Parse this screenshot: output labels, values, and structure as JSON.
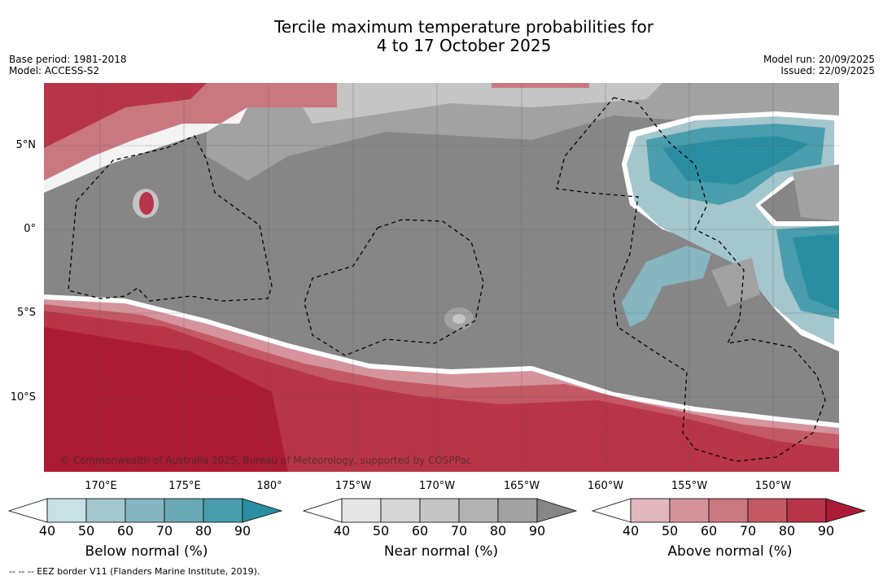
{
  "title": {
    "line1": "Tercile maximum temperature probabilities for",
    "line2": "4 to 17 October 2025"
  },
  "meta": {
    "base_period": "Base period: 1981-2018",
    "model": "Model: ACCESS-S2",
    "model_run": "Model run: 20/09/2025",
    "issued": "Issued: 22/09/2025"
  },
  "map": {
    "lat_labels": [
      "5°N",
      "0°",
      "5°S",
      "10°S"
    ],
    "lon_labels": [
      "170°E",
      "175°E",
      "180°",
      "175°W",
      "170°W",
      "165°W",
      "160°W",
      "155°W",
      "150°W"
    ],
    "copyright": "© Commonwealth of Australia 2025, Bureau of Meteorology, supported by COSPPac"
  },
  "colorbars": {
    "below": {
      "title": "Below normal (%)",
      "ticks": [
        "40",
        "50",
        "60",
        "70",
        "80",
        "90"
      ],
      "colors": [
        "#c9e0e5",
        "#a4c6cd",
        "#86b6c0",
        "#69a9b5",
        "#4a9dac",
        "#2a8ea2"
      ]
    },
    "near": {
      "title": "Near normal (%)",
      "ticks": [
        "40",
        "50",
        "60",
        "70",
        "80",
        "90"
      ],
      "colors": [
        "#e5e5e5",
        "#d6d6d6",
        "#c5c5c5",
        "#b2b2b2",
        "#a2a2a2",
        "#868686"
      ]
    },
    "above": {
      "title": "Above normal (%)",
      "ticks": [
        "40",
        "50",
        "60",
        "70",
        "80",
        "90"
      ],
      "colors": [
        "#e1b8bd",
        "#d5949c",
        "#c97880",
        "#c45966",
        "#b83448",
        "#ab1b35"
      ]
    }
  },
  "footnote": "-- -- -- EEZ border V11 (Flanders Marine Institute, 2019)."
}
